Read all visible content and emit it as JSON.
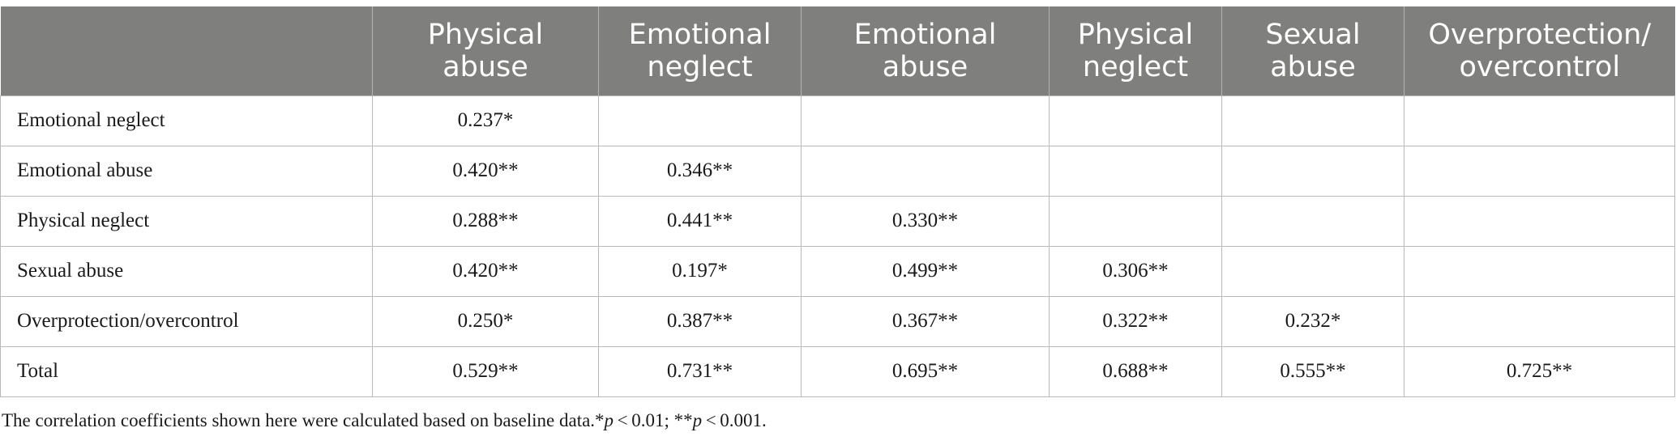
{
  "table": {
    "columns": [
      {
        "line1": "",
        "line2": ""
      },
      {
        "line1": "Physical",
        "line2": "abuse"
      },
      {
        "line1": "Emotional",
        "line2": "neglect"
      },
      {
        "line1": "Emotional",
        "line2": "abuse"
      },
      {
        "line1": "Physical",
        "line2": "neglect"
      },
      {
        "line1": "Sexual",
        "line2": "abuse"
      },
      {
        "line1": "Overprotection/",
        "line2": "overcontrol"
      }
    ],
    "rows": [
      {
        "label": "Emotional neglect",
        "cells": [
          "0.237*",
          "",
          "",
          "",
          "",
          ""
        ]
      },
      {
        "label": "Emotional abuse",
        "cells": [
          "0.420**",
          "0.346**",
          "",
          "",
          "",
          ""
        ]
      },
      {
        "label": "Physical neglect",
        "cells": [
          "0.288**",
          "0.441**",
          "0.330**",
          "",
          "",
          ""
        ]
      },
      {
        "label": "Sexual abuse",
        "cells": [
          "0.420**",
          "0.197*",
          "0.499**",
          "0.306**",
          "",
          ""
        ]
      },
      {
        "label": "Overprotection/overcontrol",
        "cells": [
          "0.250*",
          "0.387**",
          "0.367**",
          "0.322**",
          "0.232*",
          ""
        ]
      },
      {
        "label": "Total",
        "cells": [
          "0.529**",
          "0.731**",
          "0.695**",
          "0.688**",
          "0.555**",
          "0.725**"
        ]
      }
    ]
  },
  "footnote": {
    "text_1": "The correlation coefficients shown here were calculated based on baseline data.*",
    "p_1": "p",
    "text_2": " < 0.01; **",
    "p_2": "p",
    "text_3": " < 0.001."
  }
}
